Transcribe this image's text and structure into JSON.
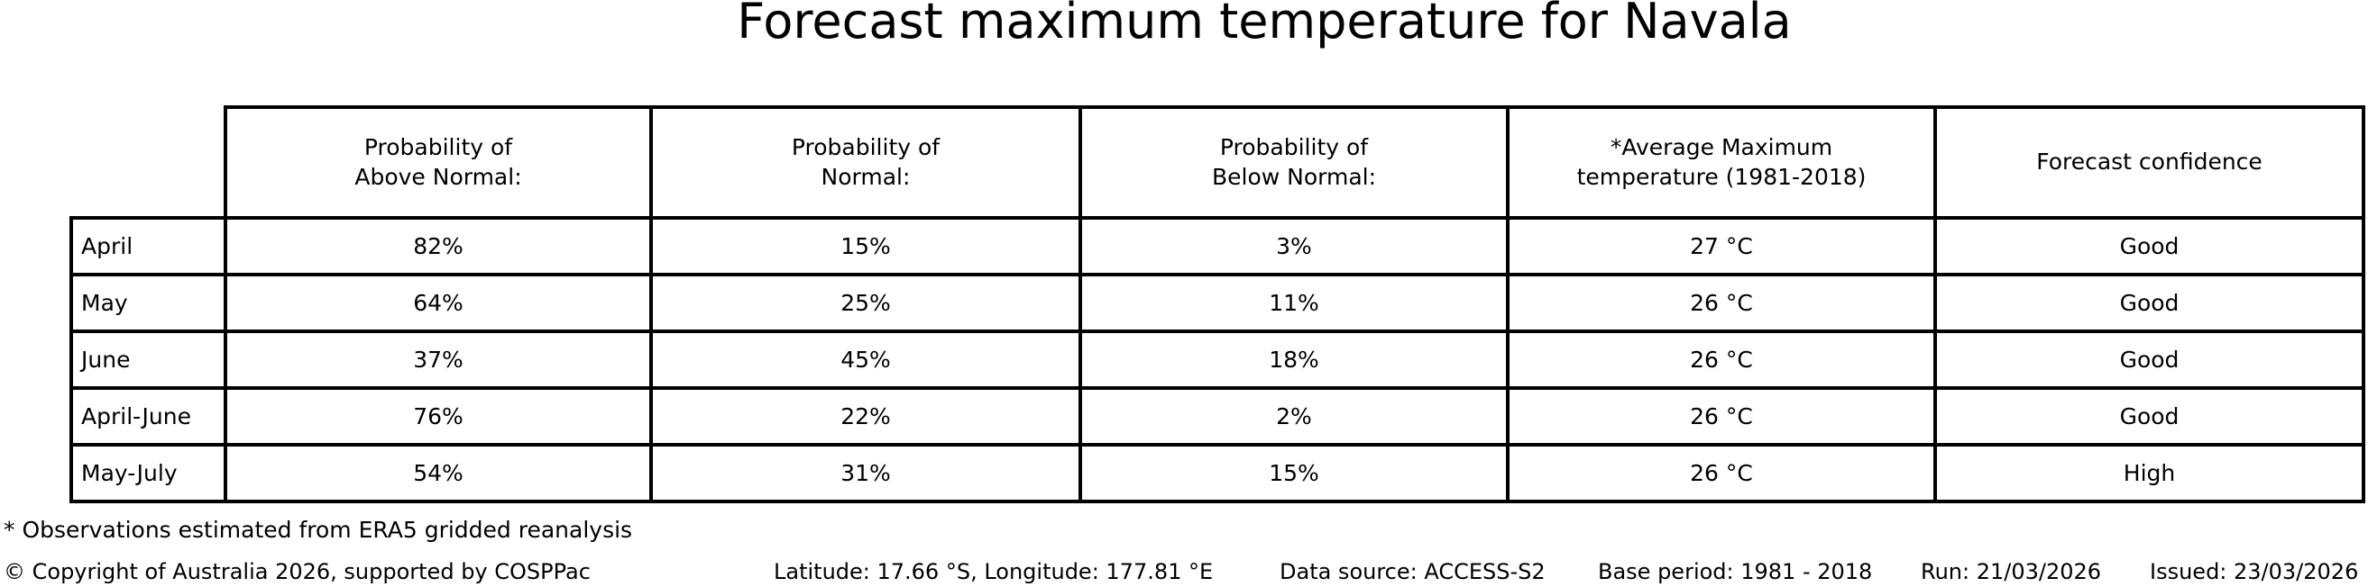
{
  "title": "Forecast maximum temperature for Navala",
  "chart_data": {
    "type": "table",
    "title": "Forecast maximum temperature for Navala",
    "columns": [
      "",
      "Probability of\nAbove Normal:",
      "Probability of\nNormal:",
      "Probability of\nBelow Normal:",
      "*Average Maximum\ntemperature (1981-2018)",
      "Forecast confidence"
    ],
    "rows": [
      {
        "label": "April",
        "cells": [
          "82%",
          "15%",
          "3%",
          "27 °C",
          "Good"
        ]
      },
      {
        "label": "May",
        "cells": [
          "64%",
          "25%",
          "11%",
          "26 °C",
          "Good"
        ]
      },
      {
        "label": "June",
        "cells": [
          "37%",
          "45%",
          "18%",
          "26 °C",
          "Good"
        ]
      },
      {
        "label": "April-June",
        "cells": [
          "76%",
          "22%",
          "2%",
          "26 °C",
          "Good"
        ]
      },
      {
        "label": "May-July",
        "cells": [
          "54%",
          "31%",
          "15%",
          "26 °C",
          "High"
        ]
      }
    ]
  },
  "footnote": "* Observations estimated from ERA5 gridded reanalysis",
  "footer": {
    "copyright": "© Copyright of Australia 2026, supported by COSPPac",
    "location": "Latitude: 17.66 °S, Longitude: 177.81 °E",
    "data_source": "Data source: ACCESS-S2",
    "base_period": "Base period: 1981 - 2018",
    "run": "Run: 21/03/2026",
    "issued": "Issued: 23/03/2026"
  },
  "colors": {
    "text": "#000000",
    "background": "#ffffff",
    "table_border": "#000000"
  }
}
